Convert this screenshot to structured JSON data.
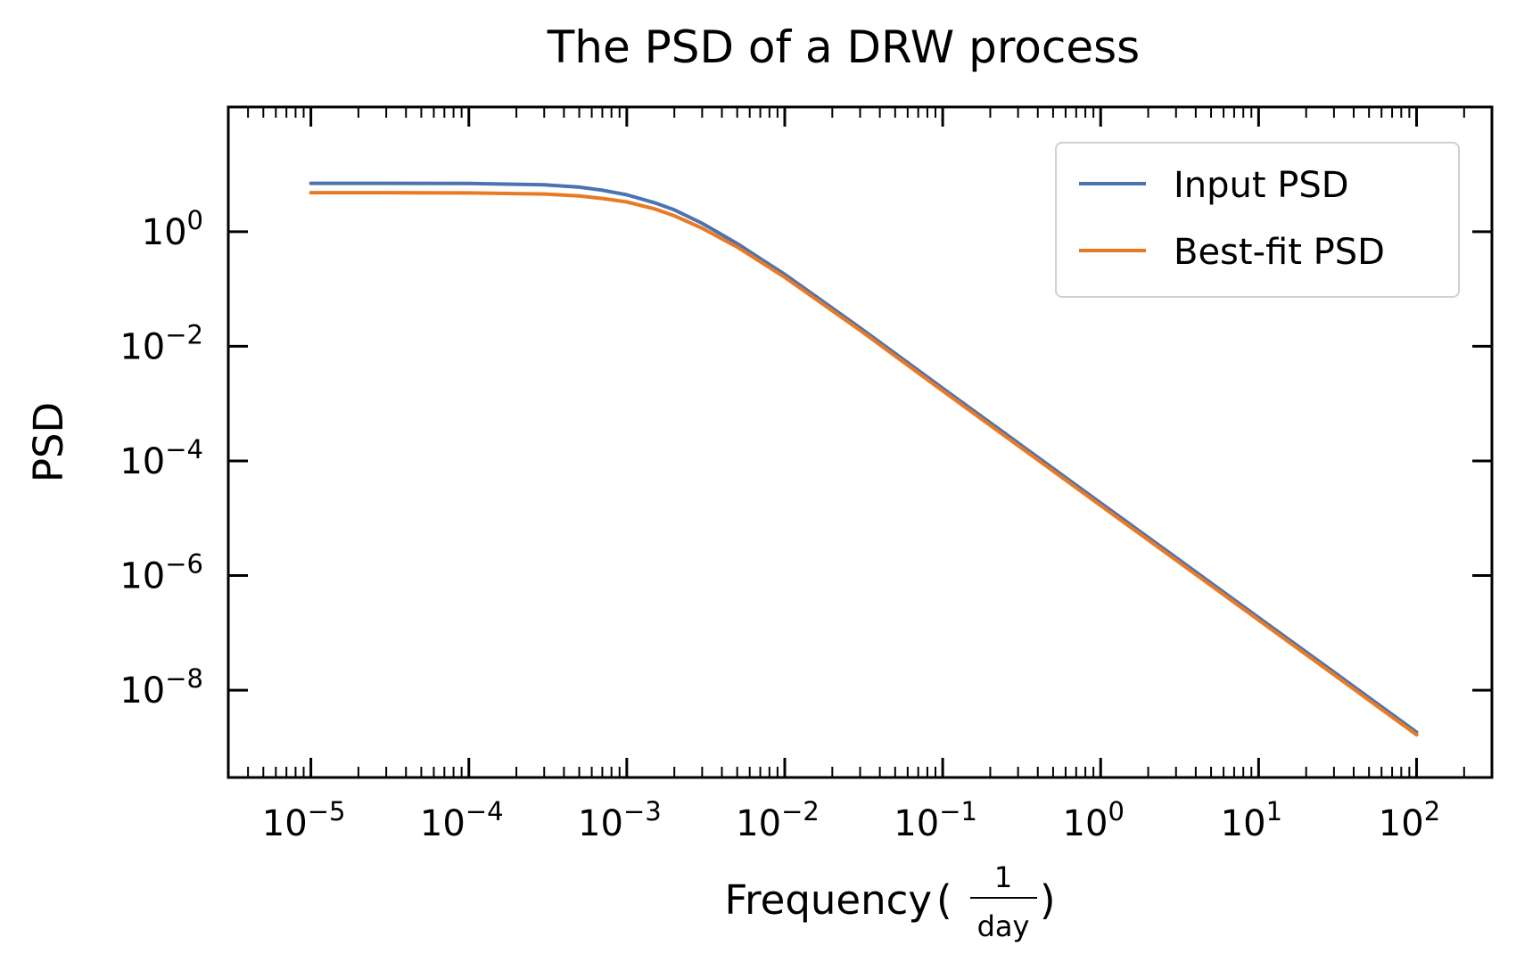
{
  "chart_data": {
    "type": "line",
    "title": "The PSD of a DRW process",
    "xlabel": "Frequency",
    "xlabel_unit_numerator": "1",
    "xlabel_unit_denominator": "day",
    "ylabel": "PSD",
    "xscale": "log",
    "yscale": "log",
    "xlim": [
      3e-06,
      300
    ],
    "ylim": [
      3e-10,
      150
    ],
    "x_ticks": [
      {
        "base": "10",
        "exp": "−5"
      },
      {
        "base": "10",
        "exp": "−4"
      },
      {
        "base": "10",
        "exp": "−3"
      },
      {
        "base": "10",
        "exp": "−2"
      },
      {
        "base": "10",
        "exp": "−1"
      },
      {
        "base": "10",
        "exp": "0"
      },
      {
        "base": "10",
        "exp": "1"
      },
      {
        "base": "10",
        "exp": "2"
      }
    ],
    "y_ticks": [
      {
        "base": "10",
        "exp": "0"
      },
      {
        "base": "10",
        "exp": "−2"
      },
      {
        "base": "10",
        "exp": "−4"
      },
      {
        "base": "10",
        "exp": "−6"
      },
      {
        "base": "10",
        "exp": "−8"
      }
    ],
    "grid": false,
    "legend_position": "top-right",
    "series": [
      {
        "name": "Input PSD",
        "color": "#4c72b0",
        "x": [
          1e-05,
          3e-05,
          0.0001,
          0.0003,
          0.0005,
          0.0007,
          0.001,
          0.0015,
          0.002,
          0.003,
          0.005,
          0.007,
          0.01,
          0.03,
          0.1,
          0.3,
          1,
          3,
          10,
          30,
          100
        ],
        "y": [
          7.0,
          7.0,
          6.95,
          6.6,
          6.0,
          5.3,
          4.4,
          3.2,
          2.4,
          1.4,
          0.62,
          0.34,
          0.18,
          0.021,
          0.00185,
          0.000206,
          1.85e-05,
          2.06e-06,
          1.85e-07,
          2.06e-08,
          1.85e-09
        ]
      },
      {
        "name": "Best-fit PSD",
        "color": "#e87a24",
        "x": [
          1e-05,
          3e-05,
          0.0001,
          0.0003,
          0.0005,
          0.0007,
          0.001,
          0.0015,
          0.002,
          0.003,
          0.005,
          0.007,
          0.01,
          0.03,
          0.1,
          0.3,
          1,
          3,
          10,
          30,
          100
        ],
        "y": [
          4.8,
          4.8,
          4.75,
          4.55,
          4.2,
          3.8,
          3.3,
          2.5,
          1.9,
          1.15,
          0.54,
          0.3,
          0.16,
          0.019,
          0.00167,
          0.000186,
          1.67e-05,
          1.86e-06,
          1.67e-07,
          1.86e-08,
          1.67e-09
        ]
      }
    ]
  }
}
